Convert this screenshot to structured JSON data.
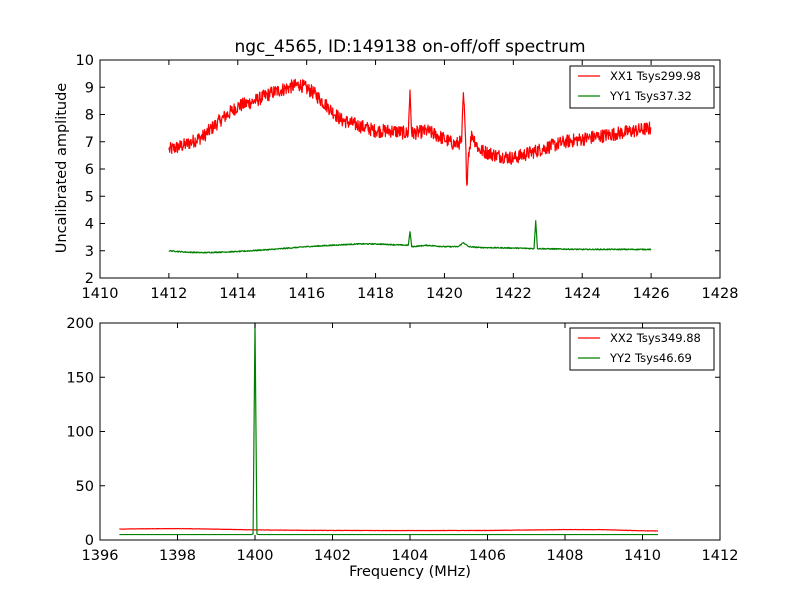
{
  "chart_data": [
    {
      "type": "line",
      "title": "ngc_4565, ID:149138 on-off/off spectrum",
      "xlabel": "",
      "ylabel": "Uncalibrated amplitude",
      "xlim": [
        1410,
        1428
      ],
      "ylim": [
        2,
        10
      ],
      "xticks": [
        1410,
        1412,
        1414,
        1416,
        1418,
        1420,
        1422,
        1424,
        1426,
        1428
      ],
      "yticks": [
        2,
        3,
        4,
        5,
        6,
        7,
        8,
        9,
        10
      ],
      "legend_position": "top-right",
      "series": [
        {
          "name": "XX1 Tsys299.98",
          "color": "#ff0000",
          "noise": 0.25,
          "x": [
            1412.0,
            1412.5,
            1413.0,
            1413.5,
            1414.0,
            1414.5,
            1415.0,
            1415.5,
            1415.8,
            1416.2,
            1416.6,
            1417.0,
            1417.5,
            1418.0,
            1418.5,
            1418.95,
            1419.0,
            1419.05,
            1419.5,
            1420.0,
            1420.3,
            1420.5,
            1420.55,
            1420.6,
            1420.65,
            1420.7,
            1420.8,
            1421.0,
            1421.5,
            1422.0,
            1422.5,
            1423.0,
            1423.5,
            1424.0,
            1424.5,
            1425.0,
            1425.5,
            1426.0
          ],
          "y": [
            6.7,
            6.9,
            7.2,
            7.8,
            8.3,
            8.5,
            8.8,
            9.0,
            9.1,
            8.8,
            8.3,
            7.8,
            7.6,
            7.4,
            7.4,
            7.3,
            8.9,
            7.3,
            7.4,
            7.1,
            6.9,
            7.0,
            8.8,
            7.5,
            5.4,
            6.6,
            7.3,
            6.7,
            6.5,
            6.4,
            6.6,
            6.8,
            7.0,
            7.1,
            7.2,
            7.3,
            7.4,
            7.5
          ]
        },
        {
          "name": "YY1 Tsys37.32",
          "color": "#008000",
          "noise": 0.02,
          "x": [
            1412.0,
            1412.5,
            1413.0,
            1414.0,
            1415.0,
            1416.0,
            1417.0,
            1417.5,
            1418.0,
            1418.95,
            1419.0,
            1419.05,
            1419.5,
            1420.0,
            1420.4,
            1420.55,
            1420.7,
            1421.0,
            1422.0,
            1422.6,
            1422.65,
            1422.7,
            1423.0,
            1424.0,
            1425.0,
            1426.0
          ],
          "y": [
            3.0,
            2.95,
            2.93,
            2.97,
            3.05,
            3.15,
            3.22,
            3.25,
            3.25,
            3.2,
            3.7,
            3.15,
            3.2,
            3.15,
            3.15,
            3.3,
            3.15,
            3.12,
            3.1,
            3.08,
            4.1,
            3.08,
            3.07,
            3.05,
            3.05,
            3.05
          ]
        }
      ]
    },
    {
      "type": "line",
      "title": "",
      "xlabel": "Frequency (MHz)",
      "ylabel": "",
      "xlim": [
        1396,
        1412
      ],
      "ylim": [
        0,
        200
      ],
      "xticks": [
        1396,
        1398,
        1400,
        1402,
        1404,
        1406,
        1408,
        1410,
        1412
      ],
      "yticks": [
        0,
        50,
        100,
        150,
        200
      ],
      "legend_position": "top-right",
      "series": [
        {
          "name": "XX2 Tsys349.88",
          "color": "#ff0000",
          "noise": 0.15,
          "x": [
            1396.5,
            1397.0,
            1398.0,
            1399.0,
            1400.0,
            1401.0,
            1402.0,
            1404.0,
            1406.0,
            1407.0,
            1408.0,
            1409.0,
            1410.0,
            1410.4
          ],
          "y": [
            10.0,
            10.3,
            10.5,
            10.0,
            9.3,
            9.0,
            8.8,
            8.7,
            8.8,
            9.2,
            9.6,
            9.5,
            8.5,
            8.3
          ]
        },
        {
          "name": "YY2 Tsys46.69",
          "color": "#008000",
          "noise": 0.0,
          "x": [
            1396.5,
            1399.9,
            1399.95,
            1400.0,
            1400.05,
            1400.1,
            1402.0,
            1406.0,
            1410.4
          ],
          "y": [
            5.0,
            5.0,
            5.5,
            200.0,
            5.5,
            5.0,
            5.0,
            5.0,
            5.0
          ]
        }
      ]
    }
  ]
}
